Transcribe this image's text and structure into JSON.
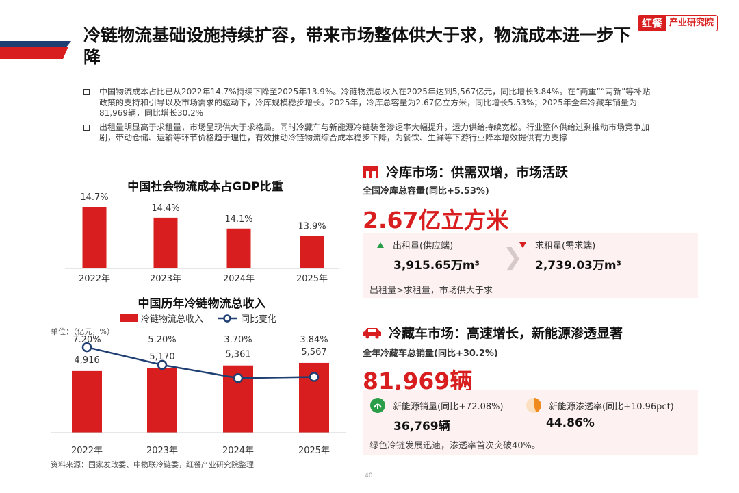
{
  "page": {
    "title": "冷链物流基础设施持续扩容，带来市场整体供大于求，物流成本进一步下降",
    "brand_mark": "红餐",
    "brand_name": "产业研究院",
    "page_number": "40",
    "source": "资料来源：国家发改委、中物联冷链委，红餐产业研究院整理",
    "colors": {
      "accent": "#d81e1e",
      "line": "#1f3f73",
      "panel": "#fdf1f1"
    }
  },
  "bullets": [
    "中国物流成本占比已从2022年14.7%持续下降至2025年13.9%。冷链物流总收入在2025年达到5,567亿元，同比增长3.84%。在“两重”“两新”等补贴政策的支持和引导以及市场需求的驱动下，冷库规模稳步增长。2025年，冷库总容量为2.67亿立方米，同比增长5.53%；2025年全年冷藏车销量为81,969辆，同比增长30.2%",
    "出租量明显高于求租量，市场呈现供大于求格局。同时冷藏车与新能源冷链装备渗透率大幅提升，运力供给持续宽松。行业整体供给过剩推动市场竞争加剧，带动仓储、运输等环节价格趋于理性，有效推动冷链物流综合成本稳步下降，为餐饮、生鲜等下游行业降本增效提供有力支撑"
  ],
  "chart_data": [
    {
      "type": "bar",
      "title": "中国社会物流成本占GDP比重",
      "categories": [
        "2022年",
        "2023年",
        "2024年",
        "2025年"
      ],
      "values": [
        14.7,
        14.4,
        14.1,
        13.9
      ],
      "value_labels": [
        "14.7%",
        "14.4%",
        "14.1%",
        "13.9%"
      ],
      "ylim": [
        13.0,
        14.8
      ],
      "color": "#d81e1e",
      "grid": false
    },
    {
      "type": "bar+line",
      "title": "中国历年冷链物流总收入",
      "unit": "单位：（亿元，%）",
      "categories": [
        "2022年",
        "2023年",
        "2024年",
        "2025年"
      ],
      "series": [
        {
          "name": "冷链物流总收入",
          "type": "bar",
          "values": [
            4916,
            5170,
            5361,
            5567
          ],
          "labels": [
            "4,916",
            "5,170",
            "5,361",
            "5,567"
          ],
          "color": "#d81e1e"
        },
        {
          "name": "同比变化",
          "type": "line",
          "values": [
            7.2,
            5.2,
            3.7,
            3.84
          ],
          "labels": [
            "7.20%",
            "5.20%",
            "3.70%",
            "3.84%"
          ],
          "color": "#1f3f73"
        }
      ],
      "bar_ylim": [
        0,
        6000
      ],
      "line_ylim": [
        0,
        30
      ],
      "legend_position": "top"
    }
  ],
  "cold_storage": {
    "heading": "冷库市场：供需双增，市场活跃",
    "sub": "全国冷库总容量(同比+5.53%)",
    "big": "2.67亿立方米",
    "supply_label": "出租量(供应端)",
    "supply_value": "3,915.65万m³",
    "demand_label": "求租量(需求端)",
    "demand_value": "2,739.03万m³",
    "note": "出租量>求租量，市场供大于求"
  },
  "reefer": {
    "heading": "冷藏车市场：高速增长，新能源渗透显著",
    "sub": "全年冷藏车总销量(同比+30.2%)",
    "big": "81,969辆",
    "ev_sales_label": "新能源销量(同比+72.08%)",
    "ev_sales_value": "36,769辆",
    "ev_rate_label": "新能源渗透率(同比+10.96pct)",
    "ev_rate_value": "44.86%",
    "ev_rate_fraction": 0.4486,
    "note": "绿色冷链发展迅速，渗透率首次突破40%。"
  }
}
